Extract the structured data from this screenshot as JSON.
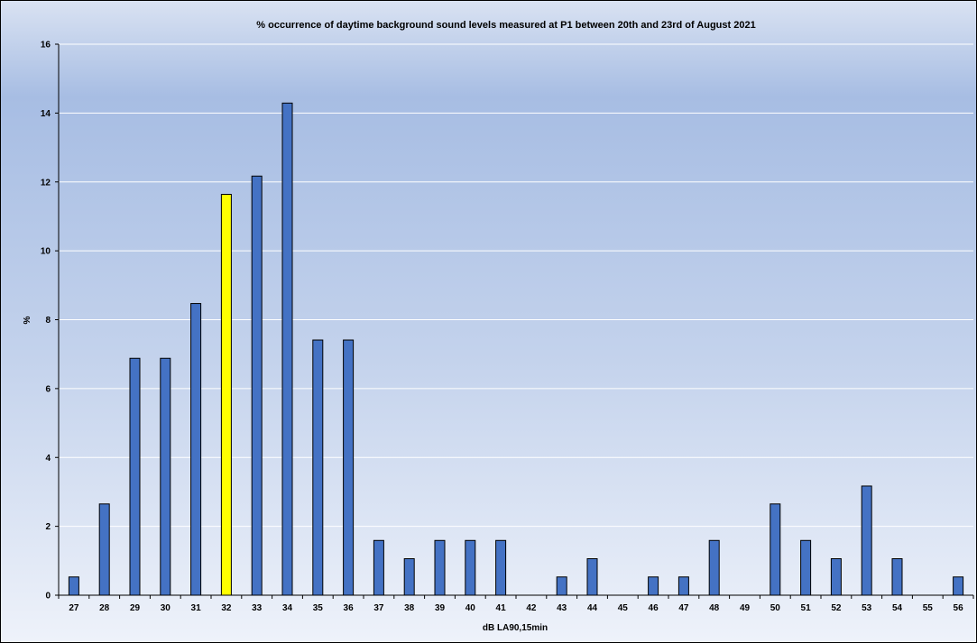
{
  "chart_data": {
    "type": "bar",
    "title": "% occurrence of daytime background sound levels measured at P1 between 20th and 23rd of August 2021",
    "xlabel": "dB LA90,15min",
    "ylabel": "%",
    "ylim": [
      0,
      16
    ],
    "yticks": [
      0,
      2,
      4,
      6,
      8,
      10,
      12,
      14,
      16
    ],
    "grid": true,
    "legend": "none",
    "categories": [
      "27",
      "28",
      "29",
      "30",
      "31",
      "32",
      "33",
      "34",
      "35",
      "36",
      "37",
      "38",
      "39",
      "40",
      "41",
      "42",
      "43",
      "44",
      "45",
      "46",
      "47",
      "48",
      "49",
      "50",
      "51",
      "52",
      "53",
      "54",
      "55",
      "56"
    ],
    "values": [
      0.53,
      2.65,
      6.88,
      6.88,
      8.47,
      11.64,
      12.17,
      14.29,
      7.41,
      7.41,
      1.59,
      1.06,
      1.59,
      1.59,
      1.59,
      0,
      0.53,
      1.06,
      0,
      0.53,
      0.53,
      1.59,
      0,
      2.65,
      1.59,
      1.06,
      3.17,
      1.06,
      0,
      0.53
    ],
    "highlight_category": "32",
    "colors": {
      "bar": "#4472c4",
      "highlight": "#ffff00",
      "bar_border": "#000000",
      "grid": "#ffffff",
      "axis": "#000000"
    }
  }
}
